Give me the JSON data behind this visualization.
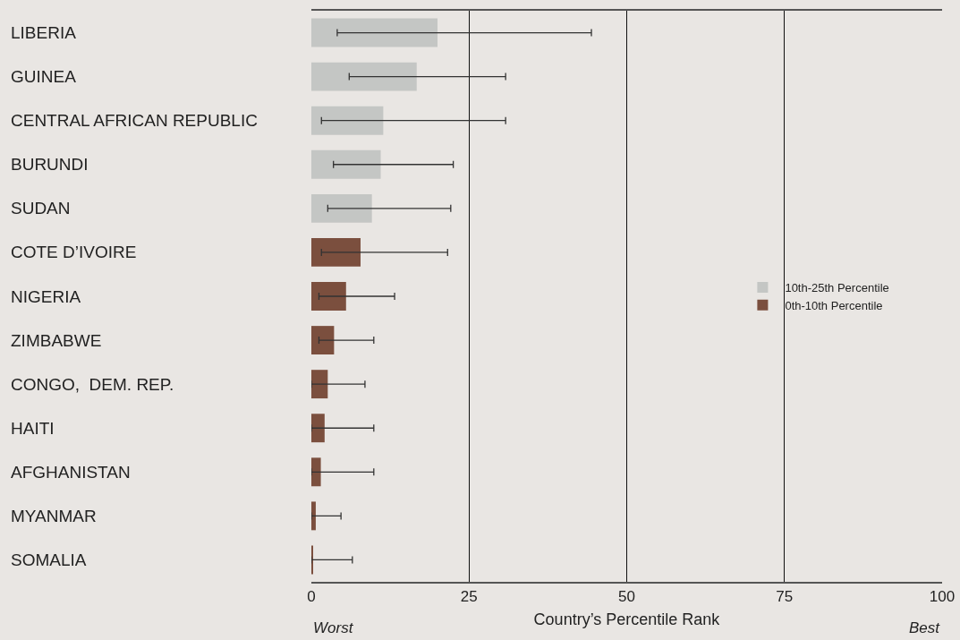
{
  "chart_data": {
    "type": "bar",
    "orientation": "horizontal",
    "xlabel": "Country’s Percentile Rank",
    "categories": [
      "LIBERIA",
      "GUINEA",
      "CENTRAL AFRICAN REPUBLIC",
      "BURUNDI",
      "SUDAN",
      "COTE D’IVOIRE",
      "NIGERIA",
      "ZIMBABWE",
      "CONGO,  DEM. REP.",
      "HAITI",
      "AFGHANISTAN",
      "MYANMAR",
      "SOMALIA"
    ],
    "series": [
      {
        "name": "10th-25th Percentile",
        "color": "#c4c6c4",
        "values": [
          20.0,
          16.7,
          11.4,
          11.0,
          9.6,
          null,
          null,
          null,
          null,
          null,
          null,
          null,
          null
        ],
        "errors": [
          [
            4.1,
            44.4
          ],
          [
            6.0,
            30.8
          ],
          [
            1.6,
            30.8
          ],
          [
            3.5,
            22.5
          ],
          [
            2.6,
            22.1
          ],
          null,
          null,
          null,
          null,
          null,
          null,
          null,
          null
        ]
      },
      {
        "name": "0th-10th Percentile",
        "color": "#7b4f3e",
        "values": [
          null,
          null,
          null,
          null,
          null,
          7.8,
          5.5,
          3.6,
          2.6,
          2.1,
          1.5,
          0.7,
          0.2
        ],
        "errors": [
          null,
          null,
          null,
          null,
          null,
          [
            1.6,
            21.6
          ],
          [
            1.2,
            13.2
          ],
          [
            1.2,
            9.9
          ],
          [
            0,
            8.5
          ],
          [
            0,
            9.9
          ],
          [
            0,
            9.9
          ],
          [
            0,
            4.7
          ],
          [
            0,
            6.5
          ]
        ]
      }
    ],
    "xlim": [
      0,
      100
    ],
    "xticks": [
      0,
      25,
      50,
      75,
      100
    ],
    "grid": "x",
    "legend": "right",
    "annotations": [
      "Worst",
      "Best"
    ]
  }
}
